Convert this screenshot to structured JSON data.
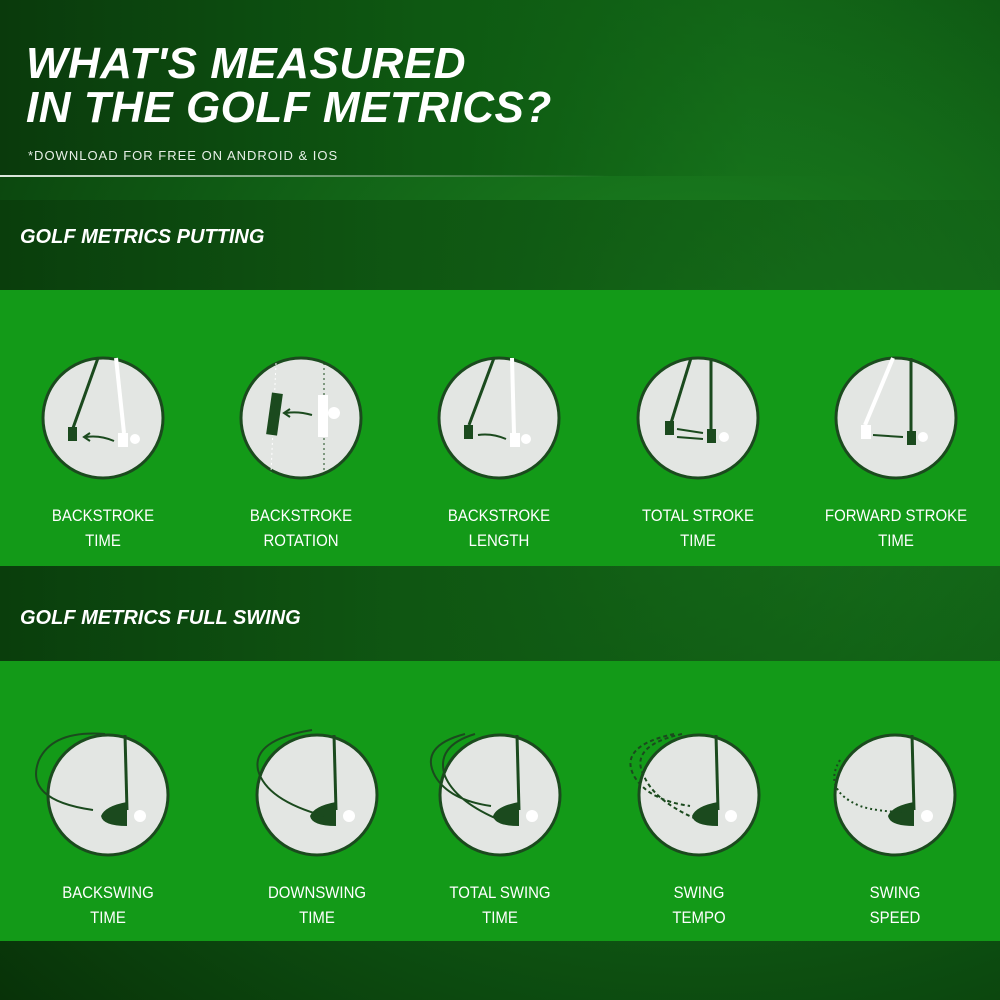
{
  "header": {
    "title_line1": "WHAT'S MEASURED",
    "title_line2": "IN THE GOLF METRICS?",
    "subtitle": "*DOWNLOAD FOR FREE ON ANDROID & IOS"
  },
  "putting": {
    "title": "GOLF METRICS PUTTING",
    "items": [
      {
        "line1": "BACKSTROKE",
        "line2": "TIME",
        "icon": "putter-backstroke-icon"
      },
      {
        "line1": "BACKSTROKE",
        "line2": "ROTATION",
        "icon": "putter-rotation-icon"
      },
      {
        "line1": "BACKSTROKE",
        "line2": "LENGTH",
        "icon": "putter-length-icon"
      },
      {
        "line1": "TOTAL STROKE",
        "line2": "TIME",
        "icon": "putter-total-icon"
      },
      {
        "line1": "FORWARD STROKE",
        "line2": "TIME",
        "icon": "putter-forward-icon"
      }
    ]
  },
  "full_swing": {
    "title": "GOLF METRICS FULL SWING",
    "items": [
      {
        "line1": "BACKSWING",
        "line2": "TIME",
        "icon": "driver-backswing-icon"
      },
      {
        "line1": "DOWNSWING",
        "line2": "TIME",
        "icon": "driver-downswing-icon"
      },
      {
        "line1": "TOTAL SWING",
        "line2": "TIME",
        "icon": "driver-total-icon"
      },
      {
        "line1": "SWING",
        "line2": "TEMPO",
        "icon": "driver-tempo-icon"
      },
      {
        "line1": "SWING",
        "line2": "SPEED",
        "icon": "driver-speed-icon"
      }
    ]
  },
  "colors": {
    "green": "#139a18",
    "dark": "#1b4a1e",
    "circle": "#e3e6e3"
  }
}
